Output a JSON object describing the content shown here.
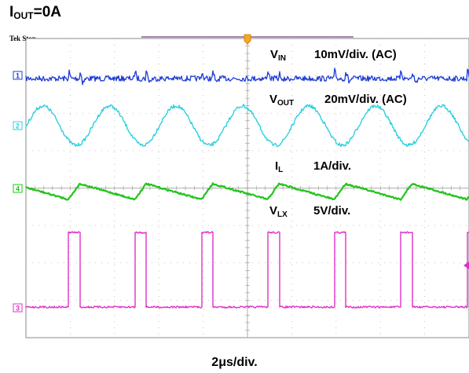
{
  "title": {
    "main": "I",
    "sub": "OUT",
    "rest": "=0A"
  },
  "status": "Tek Stop",
  "channels": [
    {
      "id": "1",
      "name": "V",
      "sub": "IN",
      "scale": "10mV/div. (AC)",
      "color": "#1f3dd6"
    },
    {
      "id": "2",
      "name": "V",
      "sub": "OUT",
      "scale": "20mV/div. (AC)",
      "color": "#2ed0e0"
    },
    {
      "id": "4",
      "name": "I",
      "sub": "L",
      "scale": "1A/div.",
      "color": "#22c41a"
    },
    {
      "id": "3",
      "name": "V",
      "sub": "LX",
      "scale": "5V/div.",
      "color": "#e030c8"
    }
  ],
  "timebase": "2μs/div.",
  "chart_data": {
    "type": "line",
    "title": "IOUT=0A",
    "xlabel": "2μs/div.",
    "grid": true,
    "x_divisions": 10,
    "y_divisions": 8,
    "series": [
      {
        "name": "VIN",
        "scale": "10mV/div. (AC)",
        "waveform": "ripple with spikes at switching edges",
        "period_div": 1.5
      },
      {
        "name": "VOUT",
        "scale": "20mV/div. (AC)",
        "waveform": "sinusoidal ripple",
        "period_div": 1.5
      },
      {
        "name": "IL",
        "scale": "1A/div.",
        "waveform": "triangular ripple",
        "period_div": 1.5
      },
      {
        "name": "VLX",
        "scale": "5V/div.",
        "waveform": "square switching",
        "period_div": 1.5,
        "high_fraction": 0.17
      }
    ]
  }
}
